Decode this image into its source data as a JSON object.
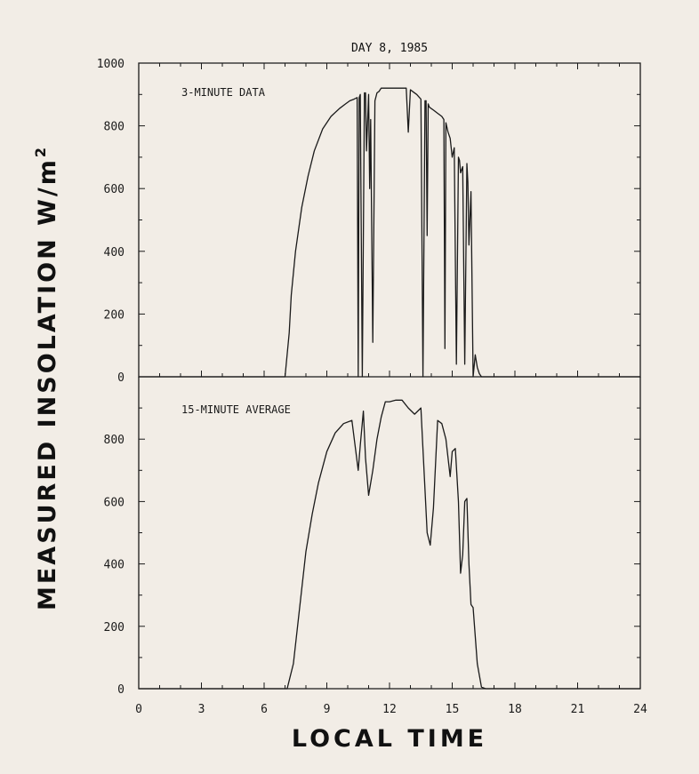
{
  "chart_data": [
    {
      "type": "line",
      "title": "DAY 8, 1985",
      "panel_label": "3-MINUTE DATA",
      "xlabel": "LOCAL TIME",
      "ylabel": "MEASURED INSOLATION W/m",
      "ylabel_superscript": "2",
      "xlim": [
        0,
        24
      ],
      "ylim": [
        0,
        1000
      ],
      "x_ticks": [
        0,
        3,
        6,
        9,
        12,
        15,
        18,
        21,
        24
      ],
      "y_ticks": [
        0,
        200,
        400,
        600,
        800,
        1000
      ],
      "series": [
        {
          "x": [
            0,
            7.0,
            7.2,
            7.3,
            7.5,
            7.8,
            8.1,
            8.4,
            8.8,
            9.2,
            9.6,
            9.9,
            10.1,
            10.3,
            10.45,
            10.5,
            10.55,
            10.6,
            10.7,
            10.8,
            10.85,
            10.9,
            11.0,
            11.05,
            11.1,
            11.2,
            11.3,
            11.4,
            11.5,
            11.55,
            11.6,
            11.7,
            11.8,
            12.0,
            12.3,
            12.6,
            12.8,
            12.9,
            13.0,
            13.1,
            13.3,
            13.5,
            13.6,
            13.7,
            13.75,
            13.8,
            13.85,
            13.9,
            14.0,
            14.1,
            14.3,
            14.5,
            14.6,
            14.65,
            14.7,
            14.8,
            14.9,
            15.0,
            15.1,
            15.2,
            15.3,
            15.35,
            15.4,
            15.5,
            15.6,
            15.7,
            15.75,
            15.8,
            15.9,
            16.0,
            16.1,
            16.2,
            16.3,
            16.4,
            24
          ],
          "values": [
            0,
            0,
            140,
            260,
            400,
            540,
            640,
            720,
            790,
            830,
            855,
            870,
            880,
            885,
            890,
            0,
            890,
            900,
            0,
            905,
            905,
            720,
            900,
            600,
            820,
            110,
            880,
            905,
            910,
            915,
            920,
            920,
            920,
            920,
            920,
            920,
            920,
            780,
            915,
            910,
            900,
            885,
            0,
            880,
            880,
            450,
            870,
            860,
            855,
            850,
            840,
            830,
            820,
            90,
            810,
            780,
            760,
            700,
            730,
            40,
            700,
            690,
            650,
            670,
            40,
            680,
            620,
            420,
            590,
            0,
            70,
            30,
            10,
            0,
            0
          ]
        }
      ]
    },
    {
      "type": "line",
      "panel_label": "15-MINUTE AVERAGE",
      "xlabel": "LOCAL TIME",
      "xlim": [
        0,
        24
      ],
      "ylim": [
        0,
        1000
      ],
      "x_ticks": [
        0,
        3,
        6,
        9,
        12,
        15,
        18,
        21,
        24
      ],
      "y_ticks": [
        0,
        200,
        400,
        600,
        800
      ],
      "series": [
        {
          "x": [
            0,
            7.1,
            7.4,
            7.6,
            7.8,
            8.0,
            8.3,
            8.6,
            9.0,
            9.4,
            9.8,
            10.2,
            10.5,
            10.6,
            10.75,
            10.85,
            11.0,
            11.2,
            11.4,
            11.6,
            11.8,
            12.0,
            12.3,
            12.6,
            12.9,
            13.2,
            13.5,
            13.65,
            13.8,
            13.95,
            14.1,
            14.3,
            14.5,
            14.7,
            14.9,
            15.0,
            15.15,
            15.3,
            15.4,
            15.5,
            15.6,
            15.7,
            15.8,
            15.9,
            16.0,
            16.2,
            16.4,
            16.6,
            24
          ],
          "values": [
            0,
            0,
            80,
            200,
            320,
            440,
            560,
            660,
            760,
            820,
            850,
            860,
            700,
            780,
            890,
            740,
            620,
            700,
            800,
            870,
            920,
            920,
            925,
            925,
            900,
            880,
            900,
            700,
            500,
            460,
            580,
            860,
            850,
            800,
            680,
            760,
            770,
            600,
            370,
            430,
            600,
            610,
            400,
            270,
            260,
            80,
            5,
            0,
            0
          ]
        }
      ]
    }
  ]
}
